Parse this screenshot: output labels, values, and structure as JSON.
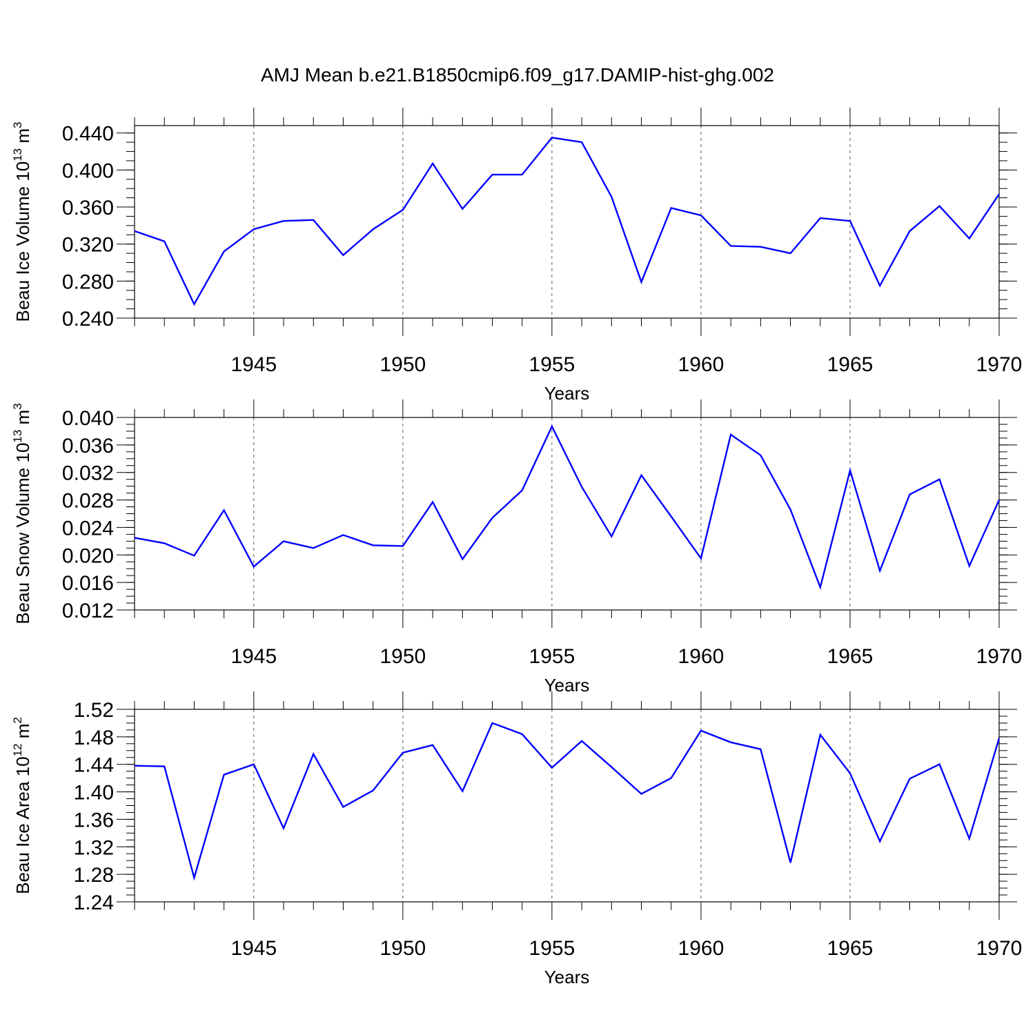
{
  "title": "AMJ Mean b.e21.B1850cmip6.f09_g17.DAMIP-hist-ghg.002",
  "colors": {
    "line": "#0000ff",
    "axis": "#000000",
    "grid": "#555555"
  },
  "chart_data": [
    {
      "type": "line",
      "title": "",
      "xlabel": "Years",
      "ylabel": {
        "pre": "Beau Ice Volume 10",
        "exp": "13",
        "post": " m",
        "unit_exp": "3"
      },
      "xlim": [
        1941,
        1970
      ],
      "ylim": [
        0.24,
        0.448
      ],
      "xticks": [
        "1945",
        "1950",
        "1955",
        "1960",
        "1965",
        "1970"
      ],
      "yticks": [
        "0.240",
        "0.280",
        "0.320",
        "0.360",
        "0.400",
        "0.440"
      ],
      "ytick_values": [
        0.24,
        0.28,
        0.32,
        0.36,
        0.4,
        0.44
      ],
      "grid": "vertical dashed at major x ticks",
      "x": [
        1941,
        1942,
        1943,
        1944,
        1945,
        1946,
        1947,
        1948,
        1949,
        1950,
        1951,
        1952,
        1953,
        1954,
        1955,
        1956,
        1957,
        1958,
        1959,
        1960,
        1961,
        1962,
        1963,
        1964,
        1965,
        1966,
        1967,
        1968,
        1969,
        1970
      ],
      "values": [
        0.334,
        0.323,
        0.255,
        0.312,
        0.336,
        0.345,
        0.346,
        0.308,
        0.336,
        0.357,
        0.407,
        0.358,
        0.395,
        0.395,
        0.435,
        0.43,
        0.371,
        0.279,
        0.359,
        0.351,
        0.318,
        0.317,
        0.31,
        0.348,
        0.345,
        0.275,
        0.334,
        0.361,
        0.326,
        0.374
      ]
    },
    {
      "type": "line",
      "title": "",
      "xlabel": "Years",
      "ylabel": {
        "pre": "Beau Snow Volume 10",
        "exp": "13",
        "post": " m",
        "unit_exp": "3"
      },
      "xlim": [
        1941,
        1970
      ],
      "ylim": [
        0.012,
        0.04
      ],
      "xticks": [
        "1945",
        "1950",
        "1955",
        "1960",
        "1965",
        "1970"
      ],
      "yticks": [
        "0.012",
        "0.016",
        "0.020",
        "0.024",
        "0.028",
        "0.032",
        "0.036",
        "0.040"
      ],
      "ytick_values": [
        0.012,
        0.016,
        0.02,
        0.024,
        0.028,
        0.032,
        0.036,
        0.04
      ],
      "grid": "vertical dashed at major x ticks",
      "x": [
        1941,
        1942,
        1943,
        1944,
        1945,
        1946,
        1947,
        1948,
        1949,
        1950,
        1951,
        1952,
        1953,
        1954,
        1955,
        1956,
        1957,
        1958,
        1959,
        1960,
        1961,
        1962,
        1963,
        1964,
        1965,
        1966,
        1967,
        1968,
        1969,
        1970
      ],
      "values": [
        0.0225,
        0.0217,
        0.0199,
        0.0265,
        0.0183,
        0.022,
        0.021,
        0.0229,
        0.0214,
        0.0213,
        0.0277,
        0.0194,
        0.0254,
        0.0294,
        0.0387,
        0.0299,
        0.0227,
        0.0316,
        0.0256,
        0.0195,
        0.0375,
        0.0345,
        0.0266,
        0.0153,
        0.0323,
        0.0177,
        0.0288,
        0.031,
        0.0184,
        0.028
      ]
    },
    {
      "type": "line",
      "title": "",
      "xlabel": "Years",
      "ylabel": {
        "pre": "Beau Ice Area 10",
        "exp": "12",
        "post": " m",
        "unit_exp": "2"
      },
      "xlim": [
        1941,
        1970
      ],
      "ylim": [
        1.24,
        1.52
      ],
      "xticks": [
        "1945",
        "1950",
        "1955",
        "1960",
        "1965",
        "1970"
      ],
      "yticks": [
        "1.24",
        "1.28",
        "1.32",
        "1.36",
        "1.40",
        "1.44",
        "1.48",
        "1.52"
      ],
      "ytick_values": [
        1.24,
        1.28,
        1.32,
        1.36,
        1.4,
        1.44,
        1.48,
        1.52
      ],
      "grid": "vertical dashed at major x ticks",
      "x": [
        1941,
        1942,
        1943,
        1944,
        1945,
        1946,
        1947,
        1948,
        1949,
        1950,
        1951,
        1952,
        1953,
        1954,
        1955,
        1956,
        1957,
        1958,
        1959,
        1960,
        1961,
        1962,
        1963,
        1964,
        1965,
        1966,
        1967,
        1968,
        1969,
        1970
      ],
      "values": [
        1.438,
        1.437,
        1.275,
        1.425,
        1.44,
        1.347,
        1.455,
        1.378,
        1.402,
        1.457,
        1.468,
        1.401,
        1.5,
        1.484,
        1.435,
        1.474,
        1.436,
        1.397,
        1.42,
        1.489,
        1.472,
        1.462,
        1.297,
        1.483,
        1.427,
        1.328,
        1.419,
        1.44,
        1.332,
        1.478
      ]
    }
  ]
}
